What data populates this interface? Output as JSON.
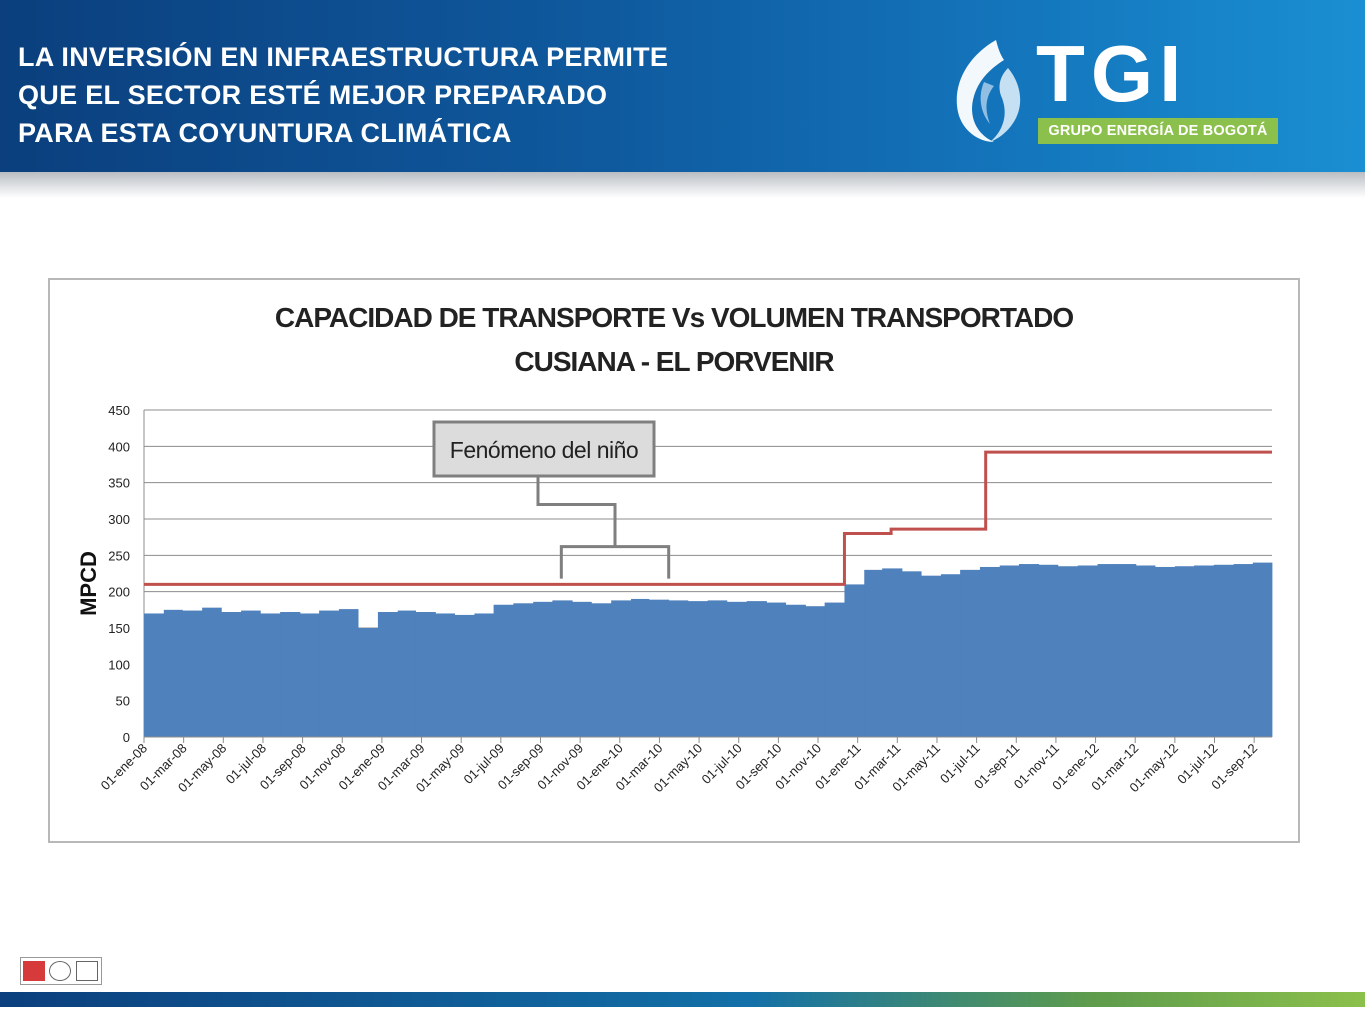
{
  "header": {
    "title_lines": [
      "LA INVERSIÓN EN INFRAESTRUCTURA PERMITE",
      "QUE EL SECTOR ESTÉ MEJOR PREPARADO",
      "PARA ESTA COYUNTURA CLIMÁTICA"
    ]
  },
  "logo": {
    "wordmark": "TGI",
    "subtitle": "GRUPO ENERGÍA DE BOGOTÁ",
    "icon": "flame-swirl-icon"
  },
  "colors": {
    "header_dark": "#0b3f7d",
    "header_light": "#1a8fd2",
    "bars": "#4f81bd",
    "capacity_line": "#c0504d",
    "annotation": "#7f7f7f",
    "logo_green": "#8cc04c"
  },
  "chart_data": {
    "type": "bar",
    "title": "CAPACIDAD DE TRANSPORTE Vs VOLUMEN TRANSPORTADO",
    "subtitle": "CUSIANA - EL PORVENIR",
    "ylabel": "MPCD",
    "xlabel": "",
    "ylim": [
      0,
      450
    ],
    "yticks": [
      0,
      50,
      100,
      150,
      200,
      250,
      300,
      350,
      400,
      450
    ],
    "grid": true,
    "x_range": [
      "2008-01-01",
      "2012-10-31"
    ],
    "x_tick_labels": [
      "01-ene-08",
      "01-mar-08",
      "01-may-08",
      "01-jul-08",
      "01-sep-08",
      "01-nov-08",
      "01-ene-09",
      "01-mar-09",
      "01-may-09",
      "01-jul-09",
      "01-sep-09",
      "01-nov-09",
      "01-ene-10",
      "01-mar-10",
      "01-may-10",
      "01-jul-10",
      "01-sep-10",
      "01-nov-10",
      "01-ene-11",
      "01-mar-11",
      "01-may-11",
      "01-jul-11",
      "01-sep-11",
      "01-nov-11",
      "01-ene-12",
      "01-mar-12",
      "01-may-12",
      "01-jul-12",
      "01-sep-12"
    ],
    "series": [
      {
        "kind": "bar",
        "x": [
          "2008-01-01",
          "2008-02-01",
          "2008-03-01",
          "2008-04-01",
          "2008-05-01",
          "2008-06-01",
          "2008-07-01",
          "2008-08-01",
          "2008-09-01",
          "2008-10-01",
          "2008-11-01",
          "2008-12-01",
          "2009-01-01",
          "2009-02-01",
          "2009-03-01",
          "2009-04-01",
          "2009-05-01",
          "2009-06-01",
          "2009-07-01",
          "2009-08-01",
          "2009-09-01",
          "2009-10-01",
          "2009-11-01",
          "2009-12-01",
          "2010-01-01",
          "2010-02-01",
          "2010-03-01",
          "2010-04-01",
          "2010-05-01",
          "2010-06-01",
          "2010-07-01",
          "2010-08-01",
          "2010-09-01",
          "2010-10-01",
          "2010-11-01",
          "2010-12-01",
          "2011-01-01",
          "2011-02-01",
          "2011-03-01",
          "2011-04-01",
          "2011-05-01",
          "2011-06-01",
          "2011-07-01",
          "2011-08-01",
          "2011-09-01",
          "2011-10-01",
          "2011-11-01",
          "2011-12-01",
          "2012-01-01",
          "2012-02-01",
          "2012-03-01",
          "2012-04-01",
          "2012-05-01",
          "2012-06-01",
          "2012-07-01",
          "2012-08-01",
          "2012-09-01",
          "2012-10-01"
        ],
        "values": [
          170,
          175,
          174,
          178,
          172,
          174,
          170,
          172,
          170,
          174,
          176,
          150,
          172,
          174,
          172,
          170,
          168,
          170,
          182,
          184,
          186,
          188,
          186,
          184,
          188,
          190,
          189,
          188,
          187,
          188,
          186,
          187,
          185,
          182,
          180,
          185,
          210,
          230,
          232,
          228,
          222,
          224,
          230,
          234,
          236,
          238,
          237,
          235,
          236,
          238,
          238,
          236,
          234,
          235,
          236,
          237,
          238,
          240
        ]
      },
      {
        "kind": "step-line",
        "x": [
          "2008-01-01",
          "2011-01-01",
          "2011-03-01",
          "2011-03-15",
          "2011-07-15",
          "2011-08-10",
          "2012-10-31"
        ],
        "values": [
          210,
          280,
          280,
          286,
          286,
          392,
          392
        ]
      }
    ],
    "annotations": [
      {
        "text": "Fenómeno del niño",
        "x_range": [
          "2009-10-15",
          "2010-04-01"
        ]
      }
    ]
  }
}
